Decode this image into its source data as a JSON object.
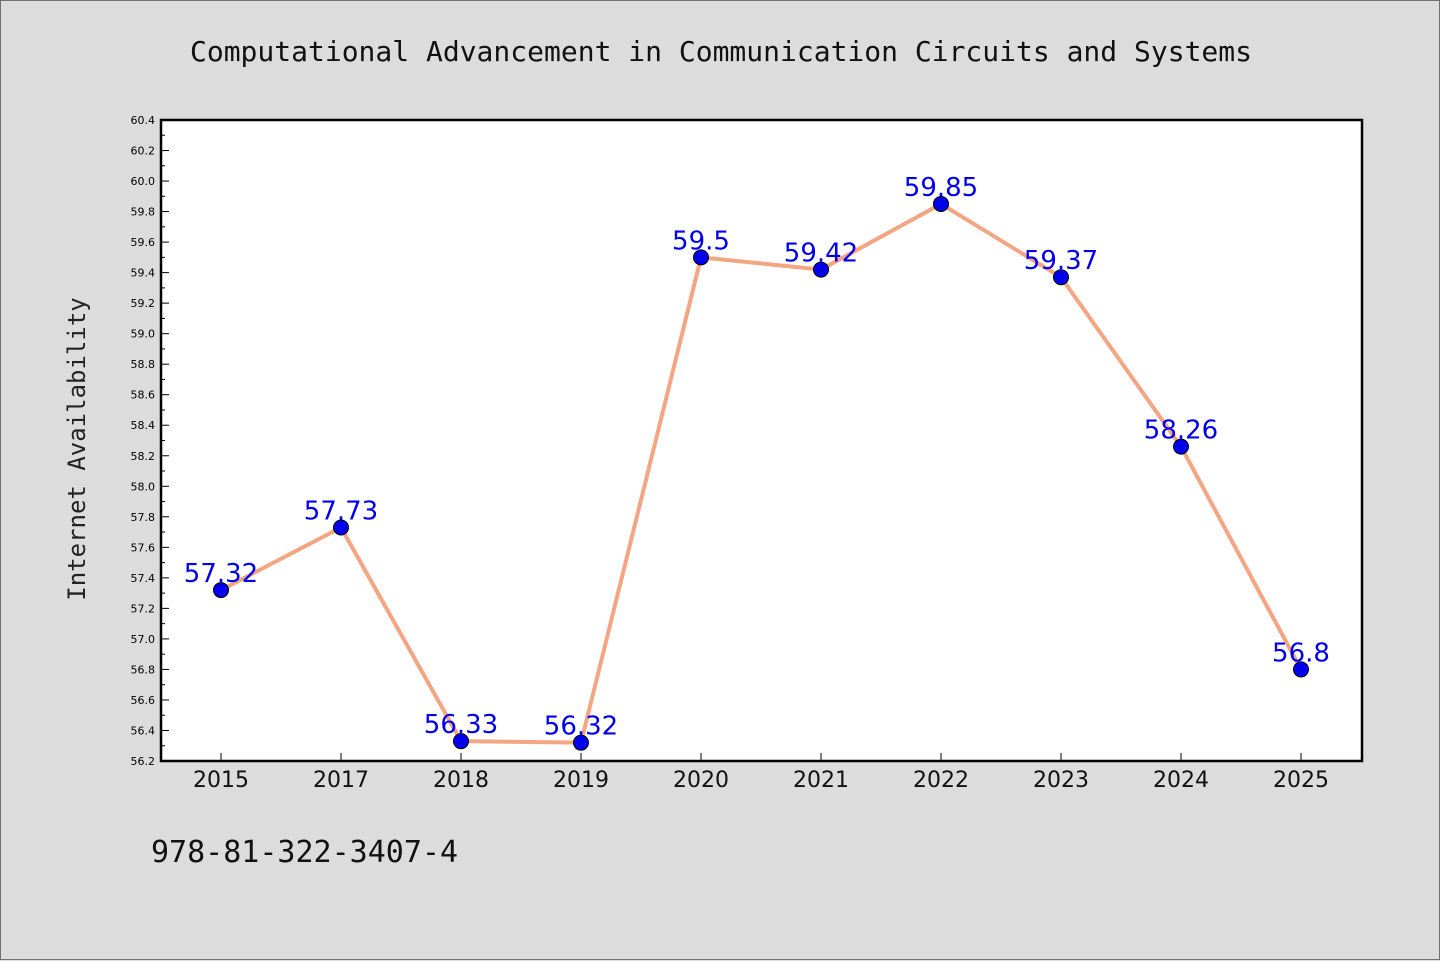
{
  "header": {
    "title": "Computational Advancement in Communication Circuits and Systems"
  },
  "footer": {
    "code": "978-81-322-3407-4"
  },
  "chart_data": {
    "type": "line",
    "title": "Computational Advancement in Communication Circuits and Systems",
    "xlabel": "",
    "ylabel": "Internet Availability",
    "categories": [
      "2015",
      "2017",
      "2018",
      "2019",
      "2020",
      "2021",
      "2022",
      "2023",
      "2024",
      "2025"
    ],
    "series": [
      {
        "values": [
          57.32,
          57.73,
          56.33,
          56.32,
          59.5,
          59.42,
          59.85,
          59.37,
          58.26,
          56.8
        ],
        "labels": [
          "57.32",
          "57.73",
          "56.33",
          "56.32",
          "59.5",
          "59.42",
          "59.85",
          "59.37",
          "58.26",
          "56.8"
        ],
        "line_color": "#f4a582",
        "marker_color": "#0000ee"
      }
    ],
    "ylim": [
      56.2,
      60.4
    ],
    "yticks": [
      "56.2",
      "56.4",
      "56.6",
      "56.8",
      "57.0",
      "57.2",
      "57.4",
      "57.6",
      "57.8",
      "58.0",
      "58.2",
      "58.4",
      "58.6",
      "58.8",
      "59.0",
      "59.2",
      "59.4",
      "59.6",
      "59.8",
      "60.0",
      "60.2",
      "60.4"
    ],
    "grid": false,
    "legend": "none",
    "data_label_color": "#0000ee"
  }
}
